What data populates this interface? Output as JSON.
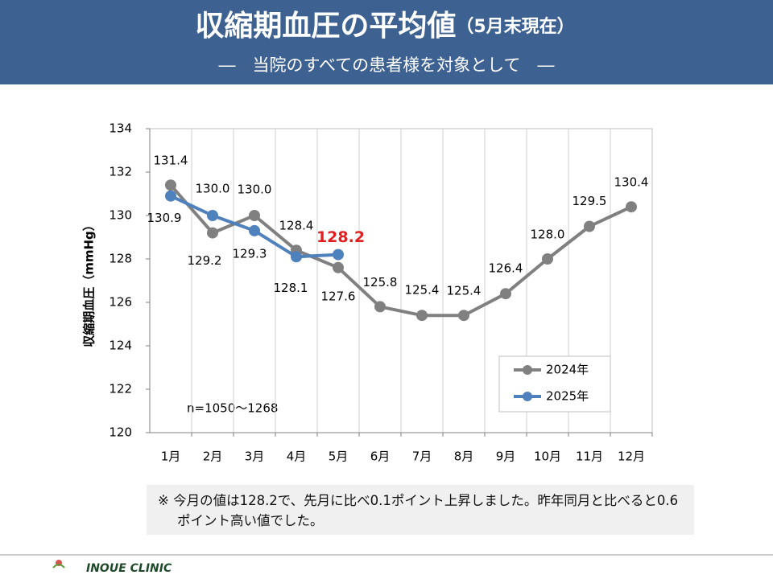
{
  "chart_data": {
    "type": "line",
    "title": "収縮期血圧の平均値",
    "title_suffix": "（5月末現在）",
    "subtitle": "―　当院のすべての患者様を対象として　―",
    "y_label": "収縮期血圧（mmHg）",
    "annotation": "n=1050～1268",
    "categories": [
      "1月",
      "2月",
      "3月",
      "4月",
      "5月",
      "6月",
      "7月",
      "8月",
      "9月",
      "10月",
      "11月",
      "12月"
    ],
    "series": [
      {
        "name": "2024年",
        "color": "#808080",
        "values": [
          131.4,
          129.2,
          130.0,
          128.4,
          127.6,
          125.8,
          125.4,
          125.4,
          126.4,
          128.0,
          129.5,
          130.4
        ],
        "value_labels": [
          "131.4",
          "129.2",
          "130.0",
          "128.4",
          "127.6",
          "125.8",
          "125.4",
          "125.4",
          "126.4",
          "128.0",
          "129.5",
          "130.4"
        ]
      },
      {
        "name": "2025年",
        "color": "#4f81bd",
        "values": [
          130.9,
          130.0,
          129.3,
          128.1,
          128.2,
          null,
          null,
          null,
          null,
          null,
          null,
          null
        ],
        "value_labels": [
          "130.9",
          "130.0",
          "129.3",
          "128.1",
          "128.2",
          null,
          null,
          null,
          null,
          null,
          null,
          null
        ],
        "highlight_color": "#e02020"
      }
    ],
    "ylim": [
      120,
      134
    ],
    "yticks": [
      120,
      122,
      124,
      126,
      128,
      130,
      132,
      134
    ],
    "legend": "lower right",
    "note": "※ 今月の値は128.2で、先月に比べ0.1ポイント上昇しました。昨年同月と比べると0.6ポイント高い値でした。",
    "footer": "INOUE CLINIC"
  }
}
